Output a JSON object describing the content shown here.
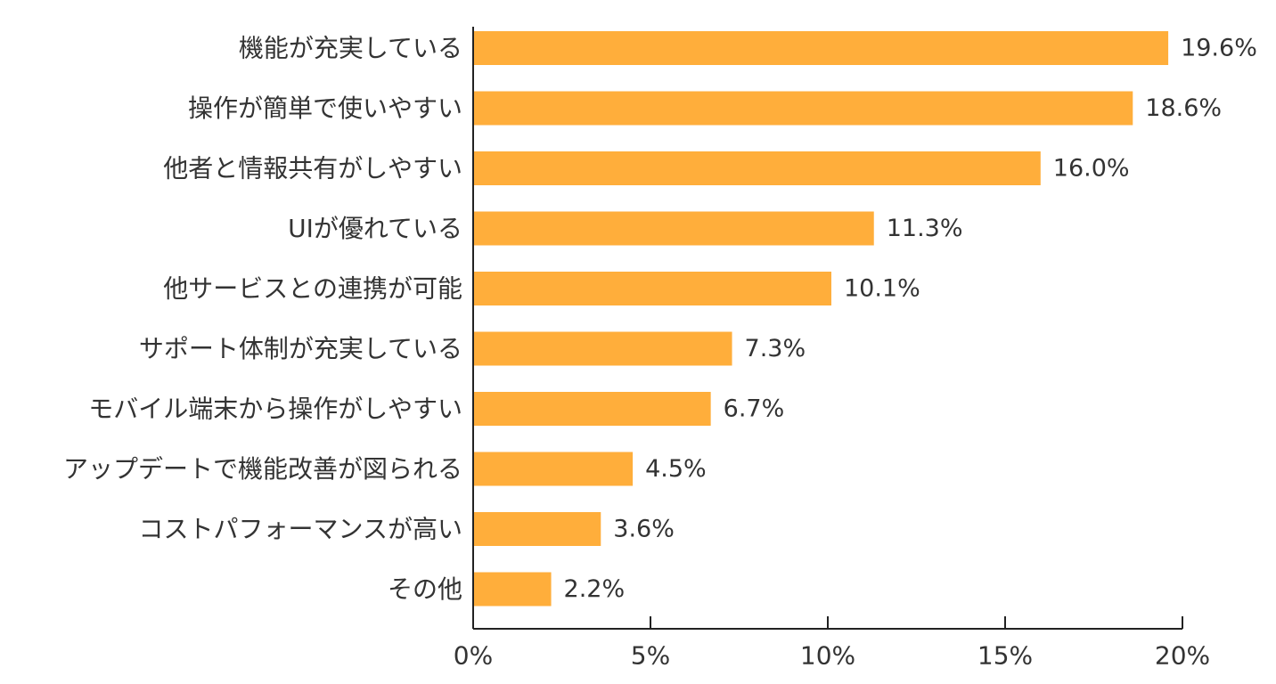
{
  "chart_data": {
    "type": "bar",
    "orientation": "horizontal",
    "categories": [
      "機能が充実している",
      "操作が簡単で使いやすい",
      "他者と情報共有がしやすい",
      "UIが優れている",
      "他サービスとの連携が可能",
      "サポート体制が充実している",
      "モバイル端末から操作がしやすい",
      "アップデートで機能改善が図られる",
      "コストパフォーマンスが高い",
      "その他"
    ],
    "values": [
      19.6,
      18.6,
      16.0,
      11.3,
      10.1,
      7.3,
      6.7,
      4.5,
      3.6,
      2.2
    ],
    "value_labels": [
      "19.6%",
      "18.6%",
      "16.0%",
      "11.3%",
      "10.1%",
      "7.3%",
      "6.7%",
      "4.5%",
      "3.6%",
      "2.2%"
    ],
    "x_ticks": [
      0,
      5,
      10,
      15,
      20
    ],
    "x_tick_labels": [
      "0%",
      "5%",
      "10%",
      "15%",
      "20%"
    ],
    "xlim": [
      0,
      20
    ],
    "grid": false,
    "legend": "none",
    "bar_color": "#FFAE3B",
    "title": "",
    "xlabel": "",
    "ylabel": ""
  }
}
